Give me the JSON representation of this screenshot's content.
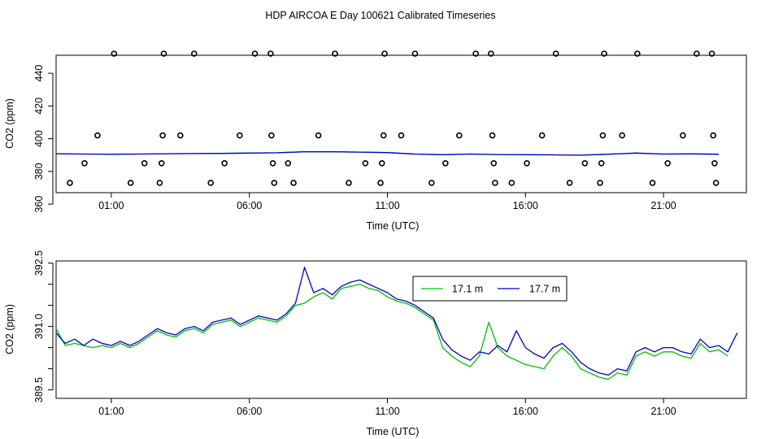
{
  "figure": {
    "title": "HDP AIRCOA E  Day 100621  Calibrated Timeseries"
  },
  "chart_data": [
    {
      "type": "scatter",
      "xlabel": "Time (UTC)",
      "ylabel": "CO2 (ppm)",
      "x_ticks": [
        1,
        6,
        11,
        16,
        21
      ],
      "x_tick_labels": [
        "01:00",
        "06:00",
        "11:00",
        "16:00",
        "21:00"
      ],
      "y_ticks": [
        360,
        380,
        400,
        420,
        440
      ],
      "y_tick_labels": [
        "360",
        "380",
        "400",
        "420",
        "440"
      ],
      "xlim": [
        -1.0,
        24.0
      ],
      "ylim": [
        367,
        451
      ],
      "grid": false,
      "calibration_points": [
        [
          -0.5,
          373
        ],
        [
          0.03,
          385
        ],
        [
          0.5,
          402
        ],
        [
          1.1,
          452
        ],
        [
          1.7,
          373
        ],
        [
          2.2,
          385
        ],
        [
          2.75,
          373
        ],
        [
          2.82,
          385
        ],
        [
          2.86,
          402
        ],
        [
          2.9,
          452
        ],
        [
          3.5,
          402
        ],
        [
          4.0,
          452
        ],
        [
          4.6,
          373
        ],
        [
          5.1,
          385
        ],
        [
          5.65,
          402
        ],
        [
          6.2,
          452
        ],
        [
          6.77,
          452
        ],
        [
          6.8,
          402
        ],
        [
          6.85,
          385
        ],
        [
          6.9,
          373
        ],
        [
          7.4,
          385
        ],
        [
          7.6,
          373
        ],
        [
          8.5,
          402
        ],
        [
          9.1,
          452
        ],
        [
          9.6,
          373
        ],
        [
          10.2,
          385
        ],
        [
          10.75,
          373
        ],
        [
          10.8,
          385
        ],
        [
          10.86,
          402
        ],
        [
          10.9,
          452
        ],
        [
          11.5,
          402
        ],
        [
          12.0,
          452
        ],
        [
          12.6,
          373
        ],
        [
          13.1,
          385
        ],
        [
          13.6,
          402
        ],
        [
          14.2,
          452
        ],
        [
          14.75,
          452
        ],
        [
          14.8,
          402
        ],
        [
          14.85,
          385
        ],
        [
          14.9,
          373
        ],
        [
          15.5,
          373
        ],
        [
          16.05,
          385
        ],
        [
          16.6,
          402
        ],
        [
          17.1,
          452
        ],
        [
          17.6,
          373
        ],
        [
          18.15,
          385
        ],
        [
          18.7,
          373
        ],
        [
          18.75,
          385
        ],
        [
          18.8,
          402
        ],
        [
          18.85,
          452
        ],
        [
          19.5,
          402
        ],
        [
          20.05,
          452
        ],
        [
          20.6,
          373
        ],
        [
          21.15,
          385
        ],
        [
          21.7,
          402
        ],
        [
          22.2,
          452
        ],
        [
          22.75,
          452
        ],
        [
          22.8,
          402
        ],
        [
          22.85,
          385
        ],
        [
          22.9,
          373
        ]
      ],
      "series": [
        {
          "color": "#00c000",
          "x": [
            -1.0,
            0,
            1,
            2,
            3,
            4,
            5,
            6,
            7,
            8,
            9,
            10,
            11,
            12,
            13,
            14,
            15,
            16,
            17,
            18,
            19,
            20,
            21,
            22,
            23
          ],
          "y": [
            390.8,
            390.6,
            390.5,
            390.6,
            390.8,
            390.9,
            391.0,
            391.2,
            391.4,
            392.0,
            392.0,
            391.8,
            391.5,
            390.6,
            390.2,
            390.6,
            390.3,
            390.2,
            390.1,
            389.9,
            390.5,
            391.2,
            390.6,
            390.7,
            390.5
          ]
        },
        {
          "color": "#0000d0",
          "x": [
            -1.0,
            0,
            1,
            2,
            3,
            4,
            5,
            6,
            7,
            8,
            9,
            10,
            11,
            12,
            13,
            14,
            15,
            16,
            17,
            18,
            19,
            20,
            21,
            22,
            23
          ],
          "y": [
            390.8,
            390.6,
            390.5,
            390.6,
            390.8,
            390.9,
            391.0,
            391.2,
            391.4,
            392.0,
            392.0,
            391.8,
            391.5,
            390.6,
            390.2,
            390.6,
            390.3,
            390.2,
            390.1,
            389.9,
            390.5,
            391.2,
            390.6,
            390.7,
            390.5
          ]
        }
      ]
    },
    {
      "type": "line",
      "xlabel": "Time (UTC)",
      "ylabel": "CO2 (ppm)",
      "x_ticks": [
        1,
        6,
        11,
        16,
        21
      ],
      "x_tick_labels": [
        "01:00",
        "06:00",
        "11:00",
        "16:00",
        "21:00"
      ],
      "y_ticks": [
        389.5,
        390.0,
        390.5,
        391.0,
        391.5,
        392.0,
        392.5
      ],
      "y_tick_labels": [
        "389.5",
        "",
        "",
        "391.0",
        "",
        "",
        "392.5"
      ],
      "xlim": [
        -1.0,
        24.0
      ],
      "ylim": [
        389.3,
        392.55
      ],
      "grid": false,
      "legend_position": "top-right",
      "series": [
        {
          "name": "17.1 m",
          "color": "#00c000",
          "x": [
            -1.0,
            -0.67,
            -0.33,
            0,
            0.33,
            0.67,
            1,
            1.33,
            1.67,
            2,
            2.33,
            2.67,
            3,
            3.33,
            3.67,
            4,
            4.33,
            4.67,
            5,
            5.33,
            5.67,
            6,
            6.33,
            6.67,
            7,
            7.33,
            7.67,
            8,
            8.33,
            8.67,
            9,
            9.33,
            9.67,
            10,
            10.33,
            10.67,
            11,
            11.33,
            11.67,
            12,
            12.33,
            12.67,
            13,
            13.33,
            13.67,
            14,
            14.33,
            14.67,
            15,
            15.33,
            15.67,
            16,
            16.33,
            16.67,
            17,
            17.33,
            17.67,
            18,
            18.33,
            18.67,
            19,
            19.33,
            19.67,
            20,
            20.33,
            20.67,
            21,
            21.33,
            21.67,
            22,
            22.33,
            22.67,
            23,
            23.33
          ],
          "y": [
            390.95,
            390.55,
            390.6,
            390.55,
            390.5,
            390.55,
            390.5,
            390.6,
            390.5,
            390.6,
            390.75,
            390.9,
            390.8,
            390.75,
            390.9,
            390.95,
            390.85,
            391.05,
            391.1,
            391.15,
            391.0,
            391.1,
            391.2,
            391.15,
            391.1,
            391.25,
            391.5,
            391.55,
            391.7,
            391.8,
            391.65,
            391.9,
            391.95,
            392.0,
            391.9,
            391.85,
            391.7,
            391.6,
            391.55,
            391.45,
            391.3,
            391.15,
            390.5,
            390.3,
            390.15,
            390.05,
            390.3,
            391.1,
            390.5,
            390.3,
            390.2,
            390.1,
            390.05,
            390.0,
            390.3,
            390.5,
            390.3,
            390.0,
            389.9,
            389.8,
            389.75,
            389.9,
            389.85,
            390.3,
            390.4,
            390.3,
            390.4,
            390.4,
            390.3,
            390.25,
            390.6,
            390.4,
            390.45,
            390.3
          ]
        },
        {
          "name": "17.7 m",
          "color": "#0000d0",
          "x": [
            -1.0,
            -0.67,
            -0.33,
            0,
            0.33,
            0.67,
            1,
            1.33,
            1.67,
            2,
            2.33,
            2.67,
            3,
            3.33,
            3.67,
            4,
            4.33,
            4.67,
            5,
            5.33,
            5.67,
            6,
            6.33,
            6.67,
            7,
            7.33,
            7.67,
            8,
            8.33,
            8.67,
            9,
            9.33,
            9.67,
            10,
            10.33,
            10.67,
            11,
            11.33,
            11.67,
            12,
            12.33,
            12.67,
            13,
            13.33,
            13.67,
            14,
            14.33,
            14.67,
            15,
            15.33,
            15.67,
            16,
            16.33,
            16.67,
            17,
            17.33,
            17.67,
            18,
            18.33,
            18.67,
            19,
            19.33,
            19.67,
            20,
            20.33,
            20.67,
            21,
            21.33,
            21.67,
            22,
            22.33,
            22.67,
            23,
            23.33,
            23.67
          ],
          "y": [
            390.85,
            390.6,
            390.7,
            390.55,
            390.7,
            390.6,
            390.55,
            390.65,
            390.55,
            390.65,
            390.8,
            390.95,
            390.85,
            390.8,
            390.95,
            391.0,
            390.9,
            391.1,
            391.15,
            391.2,
            391.05,
            391.15,
            391.25,
            391.2,
            391.15,
            391.3,
            391.55,
            392.4,
            391.8,
            391.9,
            391.75,
            391.95,
            392.05,
            392.1,
            392.0,
            391.9,
            391.8,
            391.65,
            391.6,
            391.5,
            391.35,
            391.2,
            390.7,
            390.45,
            390.3,
            390.2,
            390.4,
            390.35,
            390.55,
            390.4,
            390.9,
            390.5,
            390.35,
            390.25,
            390.5,
            390.6,
            390.4,
            390.15,
            390.0,
            389.9,
            389.85,
            390.0,
            389.95,
            390.4,
            390.5,
            390.4,
            390.5,
            390.5,
            390.4,
            390.35,
            390.7,
            390.5,
            390.55,
            390.4,
            390.85
          ]
        }
      ]
    }
  ]
}
